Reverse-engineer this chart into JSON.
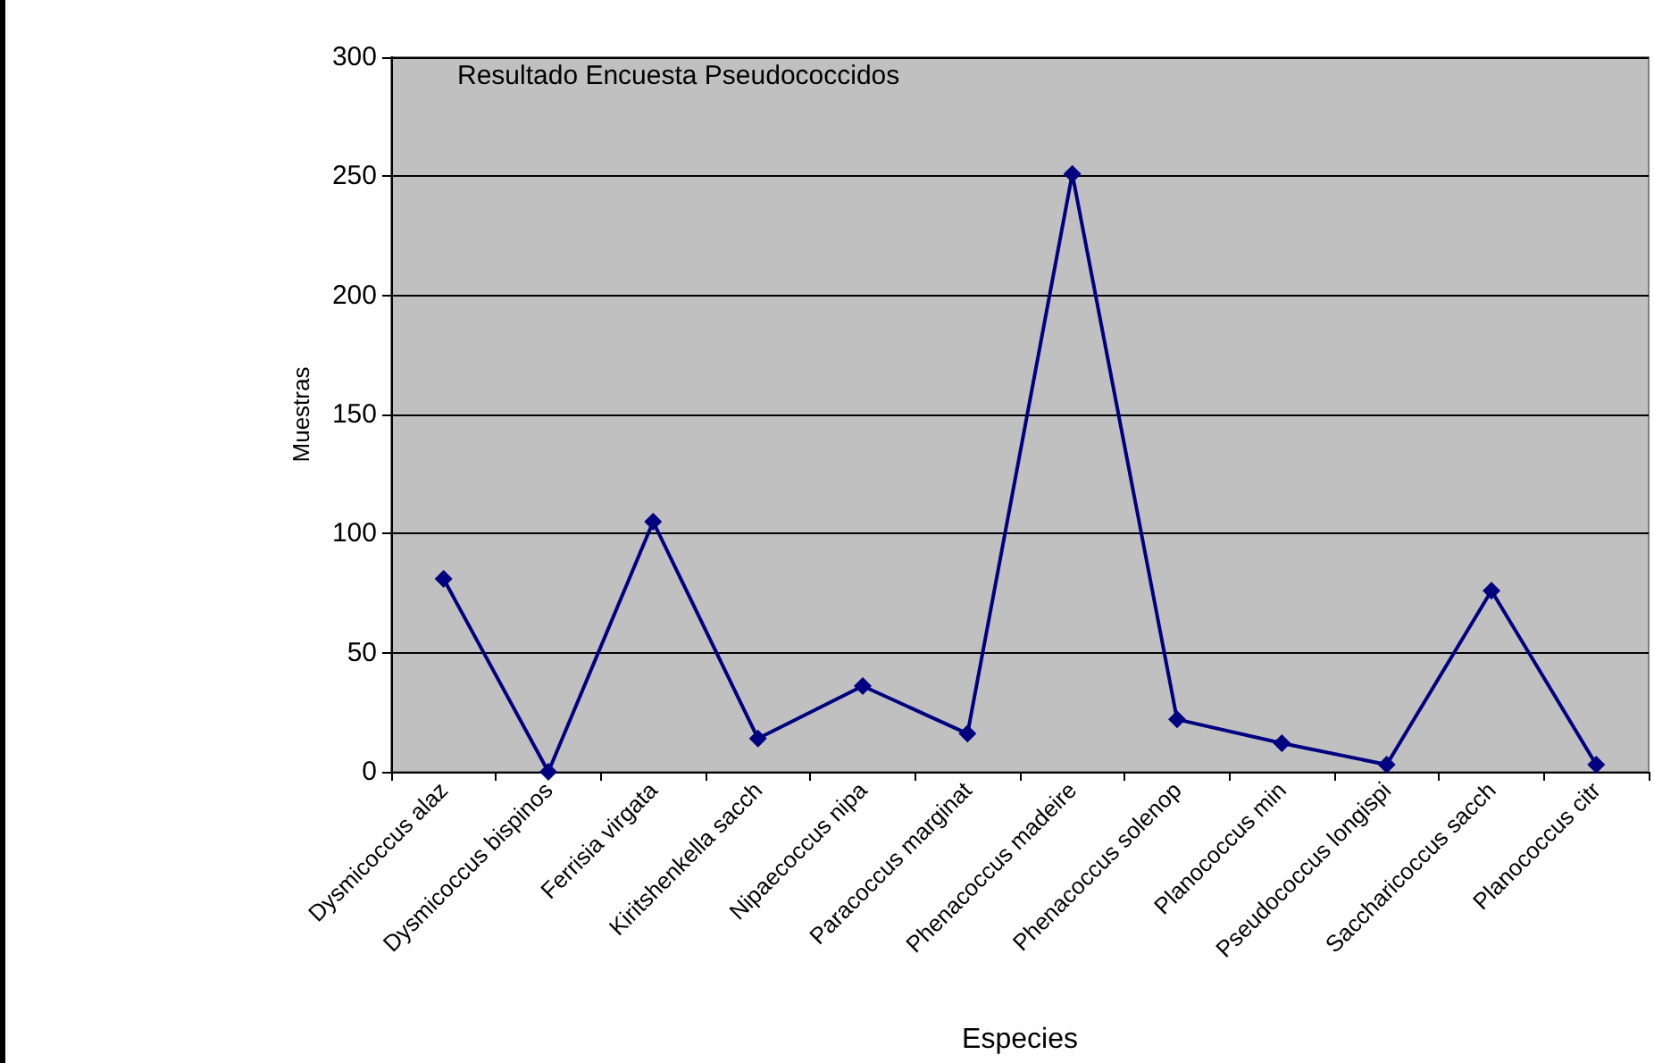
{
  "chart_data": {
    "type": "line",
    "title": "Resultado Encuesta Pseudococcidos",
    "xlabel": "Especies",
    "ylabel": "Muestras",
    "categories": [
      "Dysmicoccus alaz",
      "Dysmicoccus bispinos",
      "Ferrisia virgata",
      "Kiritshenkella sacch",
      "Nipaecoccus nipa",
      "Paracoccus marginat",
      "Phenacoccus madeire",
      "Phenacoccus solenop",
      "Planococcus min",
      "Pseudococcus longispi",
      "Saccharicoccus sacch",
      "Planococcus citr"
    ],
    "series": [
      {
        "color": "#000080",
        "values": [
          81,
          0,
          105,
          14,
          36,
          16,
          251,
          22,
          12,
          3,
          76,
          3
        ]
      }
    ],
    "ylim": [
      0,
      300
    ],
    "yticks": [
      0,
      50,
      100,
      150,
      200,
      250,
      300
    ],
    "grid": "y",
    "marker": "diamond",
    "line_style": "solid"
  }
}
